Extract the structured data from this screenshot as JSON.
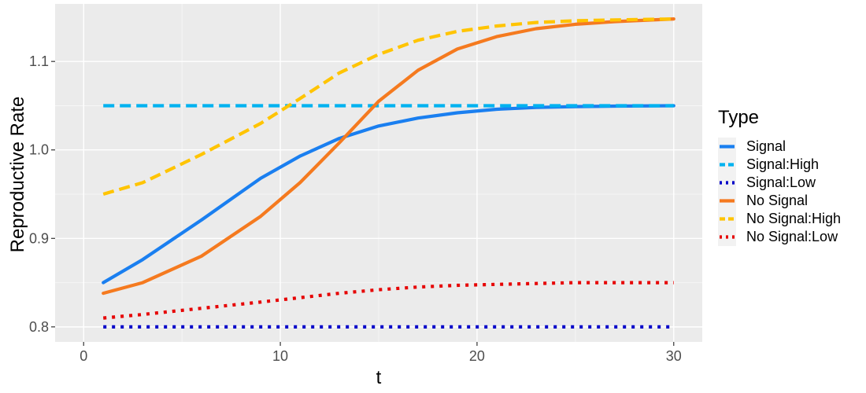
{
  "chart_data": {
    "type": "line",
    "xlabel": "t",
    "ylabel": "Reproductive Rate",
    "xlim": [
      -1.45,
      31.45
    ],
    "ylim": [
      0.783,
      1.165
    ],
    "x_ticks": [
      0,
      10,
      20,
      30
    ],
    "y_ticks": [
      0.8,
      0.9,
      1.0,
      1.1
    ],
    "x_tick_labels": [
      "0",
      "10",
      "20",
      "30"
    ],
    "y_tick_labels": [
      "0.8",
      "0.9",
      "1.0",
      "1.1"
    ],
    "grid": true,
    "legend": {
      "title": "Type",
      "position": "right"
    },
    "x": [
      1,
      3,
      6,
      9,
      11,
      13,
      15,
      17,
      19,
      21,
      23,
      25,
      27,
      30
    ],
    "series": [
      {
        "name": "Signal",
        "color": "#1a7ff0",
        "dash": "solid",
        "values": [
          0.85,
          0.876,
          0.921,
          0.968,
          0.993,
          1.013,
          1.027,
          1.036,
          1.042,
          1.046,
          1.048,
          1.049,
          1.0495,
          1.05
        ]
      },
      {
        "name": "Signal:High",
        "color": "#00b2f0",
        "dash": "dashed",
        "values": [
          1.05,
          1.05,
          1.05,
          1.05,
          1.05,
          1.05,
          1.05,
          1.05,
          1.05,
          1.05,
          1.05,
          1.05,
          1.05,
          1.05
        ]
      },
      {
        "name": "Signal:Low",
        "color": "#0000c8",
        "dash": "dotted",
        "values": [
          0.8,
          0.8,
          0.8,
          0.8,
          0.8,
          0.8,
          0.8,
          0.8,
          0.8,
          0.8,
          0.8,
          0.8,
          0.8,
          0.8
        ]
      },
      {
        "name": "No Signal",
        "color": "#f57a1f",
        "dash": "solid",
        "values": [
          0.838,
          0.85,
          0.88,
          0.925,
          0.963,
          1.008,
          1.055,
          1.09,
          1.114,
          1.128,
          1.137,
          1.142,
          1.145,
          1.148
        ]
      },
      {
        "name": "No Signal:High",
        "color": "#ffc400",
        "dash": "dashed",
        "values": [
          0.95,
          0.963,
          0.995,
          1.03,
          1.058,
          1.087,
          1.108,
          1.124,
          1.134,
          1.14,
          1.144,
          1.146,
          1.147,
          1.148
        ]
      },
      {
        "name": "No Signal:Low",
        "color": "#e60000",
        "dash": "dotted",
        "values": [
          0.81,
          0.814,
          0.821,
          0.828,
          0.833,
          0.838,
          0.842,
          0.845,
          0.847,
          0.848,
          0.849,
          0.85,
          0.85,
          0.85
        ]
      }
    ]
  }
}
